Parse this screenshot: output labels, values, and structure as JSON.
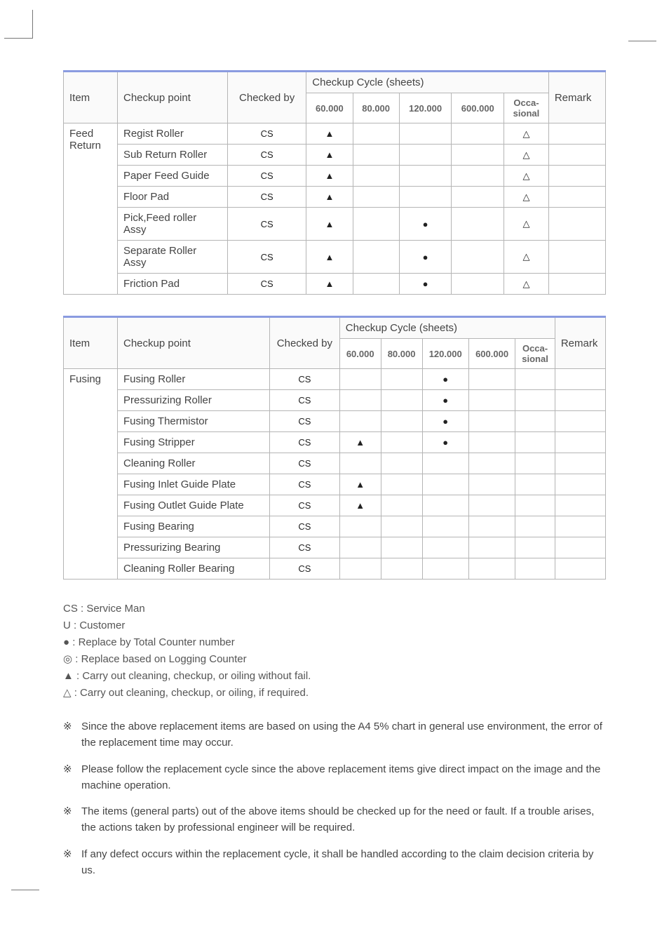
{
  "table1": {
    "headers": {
      "item": "Item",
      "checkup_point": "Checkup point",
      "checked_by": "Checked by",
      "cycle_group": "Checkup Cycle (sheets)",
      "remark": "Remark",
      "cols": [
        "60.000",
        "80.000",
        "120.000",
        "600.000",
        "Occa-\nsional"
      ]
    },
    "item_label": "Feed Return",
    "rows": [
      {
        "point": "Regist Roller",
        "by": "CS",
        "c": [
          "▲",
          "",
          "",
          "",
          "△"
        ],
        "remark": ""
      },
      {
        "point": "Sub Return Roller",
        "by": "CS",
        "c": [
          "▲",
          "",
          "",
          "",
          "△"
        ],
        "remark": ""
      },
      {
        "point": "Paper Feed Guide",
        "by": "CS",
        "c": [
          "▲",
          "",
          "",
          "",
          "△"
        ],
        "remark": ""
      },
      {
        "point": "Floor Pad",
        "by": "CS",
        "c": [
          "▲",
          "",
          "",
          "",
          "△"
        ],
        "remark": ""
      },
      {
        "point": "Pick,Feed roller Assy",
        "by": "CS",
        "c": [
          "▲",
          "",
          "●",
          "",
          "△"
        ],
        "remark": ""
      },
      {
        "point": "Separate Roller Assy",
        "by": "CS",
        "c": [
          "▲",
          "",
          "●",
          "",
          "△"
        ],
        "remark": ""
      },
      {
        "point": "Friction Pad",
        "by": "CS",
        "c": [
          "▲",
          "",
          "●",
          "",
          "△"
        ],
        "remark": ""
      }
    ]
  },
  "table2": {
    "headers": {
      "item": "Item",
      "checkup_point": "Checkup point",
      "checked_by": "Checked by",
      "cycle_group": "Checkup Cycle (sheets)",
      "remark": "Remark",
      "cols": [
        "60.000",
        "80.000",
        "120.000",
        "600.000",
        "Occa-\nsional"
      ]
    },
    "item_label": "Fusing",
    "rows": [
      {
        "point": "Fusing Roller",
        "by": "CS",
        "c": [
          "",
          "",
          "●",
          "",
          ""
        ],
        "remark": ""
      },
      {
        "point": "Pressurizing Roller",
        "by": "CS",
        "c": [
          "",
          "",
          "●",
          "",
          ""
        ],
        "remark": ""
      },
      {
        "point": "Fusing Thermistor",
        "by": "CS",
        "c": [
          "",
          "",
          "●",
          "",
          ""
        ],
        "remark": ""
      },
      {
        "point": "Fusing Stripper",
        "by": "CS",
        "c": [
          "▲",
          "",
          "●",
          "",
          ""
        ],
        "remark": ""
      },
      {
        "point": "Cleaning Roller",
        "by": "CS",
        "c": [
          "",
          "",
          "",
          "",
          ""
        ],
        "remark": ""
      },
      {
        "point": "Fusing Inlet Guide Plate",
        "by": "CS",
        "c": [
          "▲",
          "",
          "",
          "",
          ""
        ],
        "remark": ""
      },
      {
        "point": "Fusing Outlet Guide Plate",
        "by": "CS",
        "c": [
          "▲",
          "",
          "",
          "",
          ""
        ],
        "remark": ""
      },
      {
        "point": "Fusing Bearing",
        "by": "CS",
        "c": [
          "",
          "",
          "",
          "",
          ""
        ],
        "remark": ""
      },
      {
        "point": "Pressurizing Bearing",
        "by": "CS",
        "c": [
          "",
          "",
          "",
          "",
          ""
        ],
        "remark": ""
      },
      {
        "point": "Cleaning Roller Bearing",
        "by": "CS",
        "c": [
          "",
          "",
          "",
          "",
          ""
        ],
        "remark": ""
      }
    ]
  },
  "legend": [
    "CS : Service Man",
    "U : Customer",
    "● : Replace by Total Counter number",
    "◎ : Replace based on Logging Counter",
    "▲ : Carry out cleaning, checkup, or oiling without fail.",
    "△ : Carry out cleaning, checkup, or oiling, if required."
  ],
  "notes_marker": "※",
  "notes": [
    "Since the above replacement items are based on using the A4 5% chart in general use environment, the error of the replacement time may occur.",
    "Please follow the replacement cycle since the above replacement items give direct impact on the image and the machine operation.",
    "The items (general parts) out of the above items should be checked up for the need or fault. If a trouble arises, the actions taken by professional engineer will be required.",
    "If any defect occurs within the replacement cycle, it shall be handled according to the claim decision criteria by us."
  ],
  "colors": {
    "header_border": "#8a9be0",
    "cell_border": "#b5b5b5",
    "text": "#444444"
  }
}
